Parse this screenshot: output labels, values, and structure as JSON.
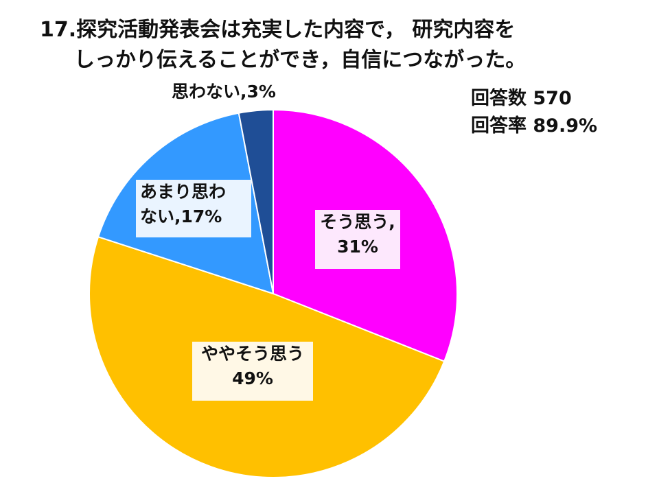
{
  "title": {
    "line1": "17.探究活動発表会は充実した内容で，  研究内容を",
    "line2": "しっかり伝えることができ，自信につながった。"
  },
  "stats": {
    "responses": "回答数 570",
    "response_rate": "回答率 89.9%"
  },
  "labels": {
    "sou": {
      "line1": "そう思う,",
      "line2": "31%"
    },
    "yaya": {
      "line1": "ややそう思う",
      "line2": "49%"
    },
    "amari": {
      "line1": "あまり思わ",
      "line2": "ない,17%"
    },
    "omowa": {
      "line1": "思わない,3%"
    }
  },
  "chart_data": {
    "type": "pie",
    "categories": [
      "そう思う",
      "ややそう思う",
      "あまり思わない",
      "思わない"
    ],
    "values": [
      31,
      49,
      17,
      3
    ],
    "colors": [
      "#ff00ff",
      "#ffc000",
      "#3399ff",
      "#1f4e96"
    ],
    "start_angle_deg": 0,
    "direction": "clockwise",
    "title": "17.探究活動発表会は充実した内容で，研究内容をしっかり伝えることができ，自信につながった。",
    "legend": "none"
  }
}
